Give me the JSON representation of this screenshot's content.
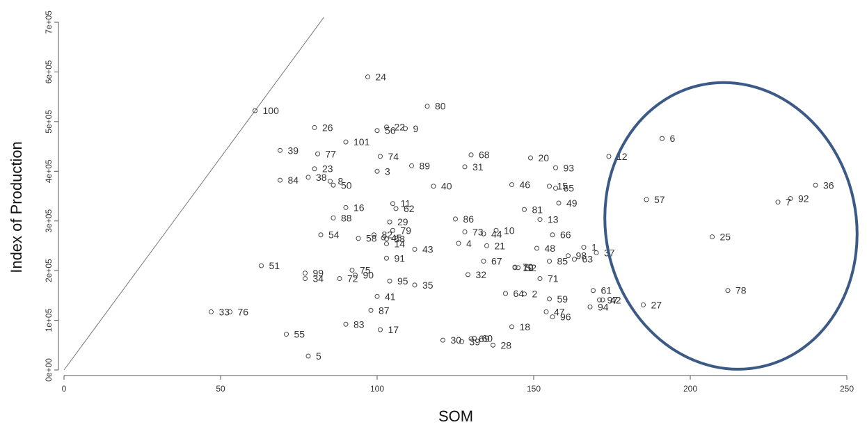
{
  "chart_data": {
    "type": "scatter",
    "title": "",
    "xlabel": "SOM",
    "ylabel": "Index of Production",
    "xlim": [
      0,
      250
    ],
    "ylim": [
      0,
      700000
    ],
    "x_ticks": [
      0,
      50,
      100,
      150,
      200,
      250
    ],
    "x_tick_labels": [
      "0",
      "50",
      "100",
      "150",
      "200",
      "250"
    ],
    "y_ticks": [
      0,
      100000,
      200000,
      300000,
      400000,
      500000,
      600000,
      700000
    ],
    "y_tick_labels": [
      "0e+00",
      "1e+05",
      "2e+05",
      "3e+05",
      "4e+05",
      "5e+05",
      "6e+05",
      "7e+05"
    ],
    "reference_line": {
      "from": [
        0,
        0
      ],
      "to": [
        83,
        710000
      ]
    },
    "highlight_ellipse": {
      "cx": 213,
      "cy": 290000,
      "rx": 40,
      "ry": 290000,
      "color": "#3c5a86"
    },
    "grid": false,
    "points": [
      {
        "label": "1",
        "x": 166,
        "y": 247000
      },
      {
        "label": "2",
        "x": 147,
        "y": 153000
      },
      {
        "label": "3",
        "x": 100,
        "y": 400000
      },
      {
        "label": "4",
        "x": 126,
        "y": 255000
      },
      {
        "label": "5",
        "x": 78,
        "y": 28000
      },
      {
        "label": "6",
        "x": 191,
        "y": 466000
      },
      {
        "label": "7",
        "x": 228,
        "y": 338000
      },
      {
        "label": "8",
        "x": 85,
        "y": 380000
      },
      {
        "label": "9",
        "x": 109,
        "y": 486000
      },
      {
        "label": "10",
        "x": 138,
        "y": 281000
      },
      {
        "label": "11",
        "x": 105,
        "y": 335000
      },
      {
        "label": "12",
        "x": 174,
        "y": 430000
      },
      {
        "label": "13",
        "x": 152,
        "y": 303000
      },
      {
        "label": "14",
        "x": 103,
        "y": 254000
      },
      {
        "label": "15",
        "x": 155,
        "y": 370000
      },
      {
        "label": "16",
        "x": 90,
        "y": 327000
      },
      {
        "label": "17",
        "x": 101,
        "y": 81000
      },
      {
        "label": "18",
        "x": 143,
        "y": 87000
      },
      {
        "label": "19",
        "x": 144,
        "y": 206000
      },
      {
        "label": "20",
        "x": 149,
        "y": 427000
      },
      {
        "label": "21",
        "x": 135,
        "y": 250000
      },
      {
        "label": "22",
        "x": 103,
        "y": 489000
      },
      {
        "label": "23",
        "x": 80,
        "y": 405000
      },
      {
        "label": "24",
        "x": 97,
        "y": 590000
      },
      {
        "label": "25",
        "x": 207,
        "y": 268000
      },
      {
        "label": "26",
        "x": 80,
        "y": 488000
      },
      {
        "label": "27",
        "x": 185,
        "y": 131000
      },
      {
        "label": "28",
        "x": 137,
        "y": 50000
      },
      {
        "label": "29",
        "x": 104,
        "y": 298000
      },
      {
        "label": "30",
        "x": 121,
        "y": 60000
      },
      {
        "label": "31",
        "x": 128,
        "y": 409000
      },
      {
        "label": "32",
        "x": 129,
        "y": 192000
      },
      {
        "label": "33",
        "x": 47,
        "y": 117000
      },
      {
        "label": "34",
        "x": 77,
        "y": 184000
      },
      {
        "label": "35",
        "x": 112,
        "y": 171000
      },
      {
        "label": "36",
        "x": 240,
        "y": 372000
      },
      {
        "label": "37",
        "x": 170,
        "y": 236000
      },
      {
        "label": "38",
        "x": 78,
        "y": 388000
      },
      {
        "label": "39",
        "x": 69,
        "y": 442000
      },
      {
        "label": "40",
        "x": 118,
        "y": 370000
      },
      {
        "label": "41",
        "x": 100,
        "y": 148000
      },
      {
        "label": "42",
        "x": 172,
        "y": 141000
      },
      {
        "label": "43",
        "x": 112,
        "y": 243000
      },
      {
        "label": "44",
        "x": 134,
        "y": 274000
      },
      {
        "label": "45",
        "x": 102,
        "y": 266000
      },
      {
        "label": "46",
        "x": 143,
        "y": 373000
      },
      {
        "label": "47",
        "x": 154,
        "y": 117000
      },
      {
        "label": "48",
        "x": 151,
        "y": 245000
      },
      {
        "label": "49",
        "x": 158,
        "y": 336000
      },
      {
        "label": "50",
        "x": 86,
        "y": 372000
      },
      {
        "label": "51",
        "x": 63,
        "y": 210000
      },
      {
        "label": "52",
        "x": 145,
        "y": 206000
      },
      {
        "label": "53",
        "x": 103,
        "y": 264000
      },
      {
        "label": "54",
        "x": 82,
        "y": 272000
      },
      {
        "label": "55",
        "x": 71,
        "y": 72000
      },
      {
        "label": "56",
        "x": 100,
        "y": 482000
      },
      {
        "label": "57",
        "x": 186,
        "y": 343000
      },
      {
        "label": "58",
        "x": 94,
        "y": 265000
      },
      {
        "label": "59",
        "x": 155,
        "y": 143000
      },
      {
        "label": "60",
        "x": 131,
        "y": 64000
      },
      {
        "label": "61",
        "x": 169,
        "y": 160000
      },
      {
        "label": "62",
        "x": 106,
        "y": 325000
      },
      {
        "label": "63",
        "x": 163,
        "y": 223000
      },
      {
        "label": "64",
        "x": 141,
        "y": 154000
      },
      {
        "label": "65",
        "x": 157,
        "y": 366000
      },
      {
        "label": "66",
        "x": 156,
        "y": 272000
      },
      {
        "label": "67",
        "x": 134,
        "y": 219000
      },
      {
        "label": "68",
        "x": 130,
        "y": 433000
      },
      {
        "label": "69",
        "x": 130,
        "y": 63000
      },
      {
        "label": "70",
        "x": 144,
        "y": 207000
      },
      {
        "label": "71",
        "x": 152,
        "y": 184000
      },
      {
        "label": "72",
        "x": 88,
        "y": 184000
      },
      {
        "label": "73",
        "x": 128,
        "y": 278000
      },
      {
        "label": "74",
        "x": 101,
        "y": 430000
      },
      {
        "label": "75",
        "x": 92,
        "y": 201000
      },
      {
        "label": "76",
        "x": 53,
        "y": 117000
      },
      {
        "label": "77",
        "x": 81,
        "y": 435000
      },
      {
        "label": "78",
        "x": 212,
        "y": 160000
      },
      {
        "label": "79",
        "x": 105,
        "y": 281000
      },
      {
        "label": "80",
        "x": 116,
        "y": 531000
      },
      {
        "label": "81",
        "x": 147,
        "y": 323000
      },
      {
        "label": "82",
        "x": 99,
        "y": 272000
      },
      {
        "label": "83",
        "x": 90,
        "y": 92000
      },
      {
        "label": "84",
        "x": 69,
        "y": 382000
      },
      {
        "label": "85",
        "x": 155,
        "y": 219000
      },
      {
        "label": "86",
        "x": 125,
        "y": 304000
      },
      {
        "label": "87",
        "x": 98,
        "y": 120000
      },
      {
        "label": "88",
        "x": 86,
        "y": 306000
      },
      {
        "label": "89",
        "x": 111,
        "y": 411000
      },
      {
        "label": "90",
        "x": 93,
        "y": 191000
      },
      {
        "label": "91",
        "x": 103,
        "y": 225000
      },
      {
        "label": "92",
        "x": 232,
        "y": 345000
      },
      {
        "label": "93",
        "x": 157,
        "y": 407000
      },
      {
        "label": "94",
        "x": 168,
        "y": 127000
      },
      {
        "label": "95",
        "x": 104,
        "y": 179000
      },
      {
        "label": "96",
        "x": 156,
        "y": 107000
      },
      {
        "label": "97",
        "x": 171,
        "y": 141000
      },
      {
        "label": "98",
        "x": 161,
        "y": 230000
      },
      {
        "label": "99",
        "x": 77,
        "y": 195000
      },
      {
        "label": "100",
        "x": 61,
        "y": 522000
      },
      {
        "label": "101",
        "x": 90,
        "y": 459000
      },
      {
        "label": "39",
        "x": 127,
        "y": 57000
      }
    ]
  }
}
